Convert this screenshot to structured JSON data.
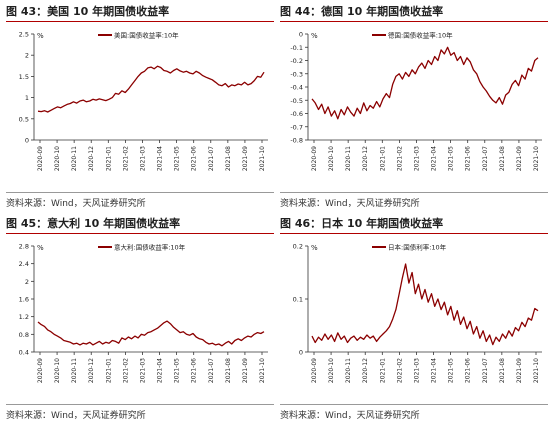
{
  "panels": [
    {
      "title": "图 43：美国 10 年期国债收益率",
      "source": "资料来源：Wind，天风证券研究所",
      "chart_data": {
        "type": "line",
        "unit": "%",
        "ylim": [
          0,
          2.5
        ],
        "yticks": [
          "0",
          "0.5",
          "1",
          "1.5",
          "2",
          "2.5"
        ],
        "yvals": [
          0,
          0.5,
          1,
          1.5,
          2,
          2.5
        ],
        "xticks": [
          "2020-09",
          "2020-10",
          "2020-11",
          "2020-12",
          "2021-01",
          "2021-02",
          "2021-03",
          "2021-04",
          "2021-05",
          "2021-06",
          "2021-07",
          "2021-08",
          "2021-09",
          "2021-10"
        ],
        "legend_placement": "top",
        "grid": false,
        "series": [
          {
            "name": "美国:国债收益率:10年",
            "color": "#8b0000",
            "values": [
              0.68,
              0.67,
              0.69,
              0.66,
              0.7,
              0.74,
              0.78,
              0.76,
              0.8,
              0.84,
              0.86,
              0.9,
              0.87,
              0.92,
              0.94,
              0.9,
              0.92,
              0.96,
              0.94,
              0.97,
              0.95,
              0.93,
              0.96,
              1.0,
              1.1,
              1.08,
              1.16,
              1.12,
              1.2,
              1.3,
              1.4,
              1.5,
              1.58,
              1.62,
              1.7,
              1.72,
              1.68,
              1.74,
              1.71,
              1.64,
              1.62,
              1.58,
              1.64,
              1.68,
              1.63,
              1.6,
              1.62,
              1.58,
              1.56,
              1.62,
              1.58,
              1.52,
              1.48,
              1.45,
              1.42,
              1.36,
              1.3,
              1.28,
              1.33,
              1.25,
              1.3,
              1.28,
              1.32,
              1.3,
              1.36,
              1.3,
              1.33,
              1.4,
              1.5,
              1.48,
              1.6
            ]
          }
        ]
      }
    },
    {
      "title": "图 44：德国 10 年期国债收益率",
      "source": "资料来源：Wind，天风证券研究所",
      "chart_data": {
        "type": "line",
        "unit": "%",
        "ylim": [
          -0.8,
          0
        ],
        "yticks": [
          "0",
          "-0.1",
          "-0.2",
          "-0.3",
          "-0.4",
          "-0.5",
          "-0.6",
          "-0.7",
          "-0.8"
        ],
        "yvals": [
          0,
          -0.1,
          -0.2,
          -0.3,
          -0.4,
          -0.5,
          -0.6,
          -0.7,
          -0.8
        ],
        "xticks": [
          "2020-09",
          "2020-10",
          "2020-11",
          "2020-12",
          "2021-01",
          "2021-02",
          "2021-03",
          "2021-04",
          "2021-05",
          "2021-06",
          "2021-07",
          "2021-08",
          "2021-09",
          "2021-10"
        ],
        "legend_placement": "top",
        "grid": false,
        "series": [
          {
            "name": "德国:国债收益率:10年",
            "color": "#8b0000",
            "values": [
              -0.49,
              -0.52,
              -0.57,
              -0.53,
              -0.6,
              -0.55,
              -0.62,
              -0.58,
              -0.64,
              -0.57,
              -0.61,
              -0.55,
              -0.59,
              -0.62,
              -0.56,
              -0.6,
              -0.52,
              -0.58,
              -0.54,
              -0.56,
              -0.51,
              -0.55,
              -0.49,
              -0.45,
              -0.48,
              -0.38,
              -0.32,
              -0.3,
              -0.34,
              -0.29,
              -0.32,
              -0.27,
              -0.3,
              -0.25,
              -0.22,
              -0.26,
              -0.2,
              -0.23,
              -0.17,
              -0.2,
              -0.12,
              -0.15,
              -0.1,
              -0.16,
              -0.14,
              -0.2,
              -0.17,
              -0.23,
              -0.18,
              -0.21,
              -0.27,
              -0.3,
              -0.36,
              -0.4,
              -0.43,
              -0.47,
              -0.5,
              -0.52,
              -0.48,
              -0.53,
              -0.46,
              -0.44,
              -0.38,
              -0.35,
              -0.39,
              -0.31,
              -0.34,
              -0.26,
              -0.28,
              -0.2,
              -0.18
            ]
          }
        ]
      }
    },
    {
      "title": "图 45：意大利 10 年期国债收益率",
      "source": "资料来源：Wind，天风证券研究所",
      "chart_data": {
        "type": "line",
        "unit": "%",
        "ylim": [
          0.4,
          2.8
        ],
        "yticks": [
          "0.4",
          "0.8",
          "1.2",
          "1.6",
          "2",
          "2.4",
          "2.8"
        ],
        "yvals": [
          0.4,
          0.8,
          1.2,
          1.6,
          2.0,
          2.4,
          2.8
        ],
        "xticks": [
          "2020-09",
          "2020-10",
          "2020-11",
          "2020-12",
          "2021-01",
          "2021-02",
          "2021-03",
          "2021-04",
          "2021-05",
          "2021-06",
          "2021-07",
          "2021-08",
          "2021-09",
          "2021-10"
        ],
        "legend_placement": "top",
        "grid": false,
        "series": [
          {
            "name": "意大利:国债收益率:10年",
            "color": "#8b0000",
            "values": [
              1.08,
              1.02,
              0.98,
              0.9,
              0.86,
              0.8,
              0.76,
              0.72,
              0.66,
              0.64,
              0.62,
              0.58,
              0.6,
              0.56,
              0.6,
              0.58,
              0.62,
              0.56,
              0.6,
              0.64,
              0.58,
              0.62,
              0.6,
              0.66,
              0.64,
              0.6,
              0.72,
              0.68,
              0.74,
              0.7,
              0.76,
              0.72,
              0.8,
              0.78,
              0.84,
              0.86,
              0.9,
              0.94,
              1.0,
              1.06,
              1.1,
              1.04,
              0.96,
              0.9,
              0.84,
              0.86,
              0.8,
              0.78,
              0.82,
              0.74,
              0.7,
              0.68,
              0.62,
              0.58,
              0.6,
              0.56,
              0.58,
              0.54,
              0.6,
              0.64,
              0.58,
              0.66,
              0.7,
              0.66,
              0.72,
              0.76,
              0.74,
              0.8,
              0.84,
              0.82,
              0.86
            ]
          }
        ]
      }
    },
    {
      "title": "图 46：日本 10 年期国债收益率",
      "source": "资料来源：Wind，天风证券研究所",
      "chart_data": {
        "type": "line",
        "unit": "%",
        "ylim": [
          0,
          0.2
        ],
        "yticks": [
          "0",
          "0.1",
          "0.2"
        ],
        "yvals": [
          0,
          0.1,
          0.2
        ],
        "xticks": [
          "2020-09",
          "2020-10",
          "2020-11",
          "2020-12",
          "2021-01",
          "2021-02",
          "2021-03",
          "2021-04",
          "2021-05",
          "2021-06",
          "2021-07",
          "2021-08",
          "2021-09",
          "2021-10"
        ],
        "legend_placement": "top",
        "grid": false,
        "series": [
          {
            "name": "日本:国债利率:10年",
            "color": "#8b0000",
            "values": [
              0.03,
              0.018,
              0.028,
              0.022,
              0.034,
              0.024,
              0.032,
              0.02,
              0.036,
              0.024,
              0.03,
              0.018,
              0.026,
              0.03,
              0.022,
              0.028,
              0.024,
              0.032,
              0.026,
              0.03,
              0.02,
              0.028,
              0.034,
              0.04,
              0.048,
              0.062,
              0.08,
              0.11,
              0.14,
              0.166,
              0.13,
              0.15,
              0.11,
              0.128,
              0.1,
              0.118,
              0.094,
              0.11,
              0.086,
              0.1,
              0.08,
              0.094,
              0.07,
              0.086,
              0.06,
              0.078,
              0.052,
              0.066,
              0.044,
              0.058,
              0.034,
              0.048,
              0.026,
              0.04,
              0.02,
              0.032,
              0.014,
              0.028,
              0.02,
              0.034,
              0.026,
              0.04,
              0.03,
              0.046,
              0.04,
              0.056,
              0.048,
              0.064,
              0.06,
              0.082,
              0.078
            ]
          }
        ]
      }
    }
  ]
}
